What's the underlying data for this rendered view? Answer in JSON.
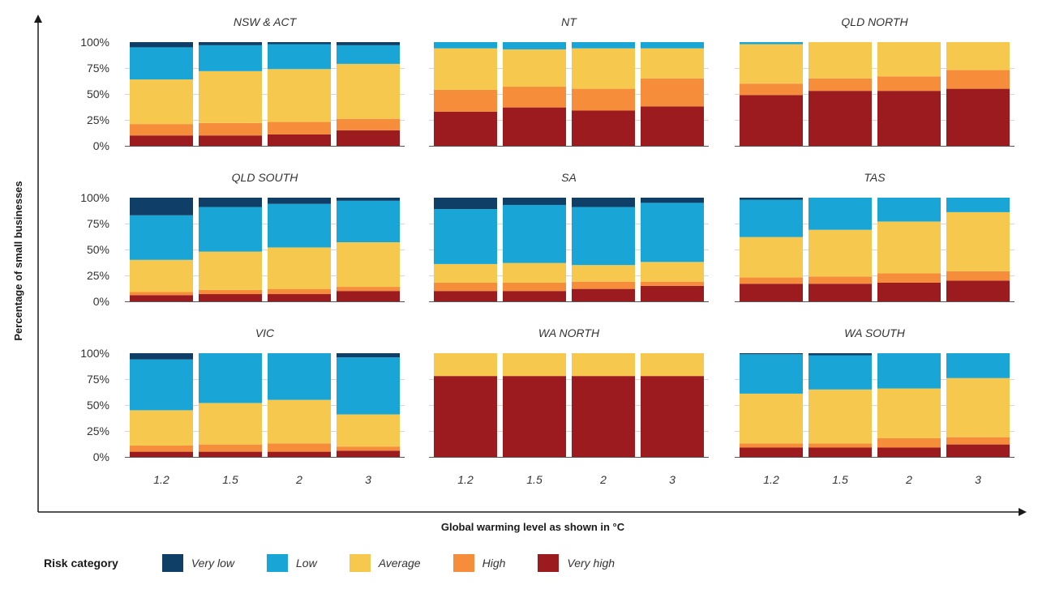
{
  "chart_data": {
    "type": "stacked-bar",
    "x_title": "Global warming level as shown in °C",
    "y_title": "Percentage of small businesses",
    "categories": [
      "1.2",
      "1.5",
      "2",
      "3"
    ],
    "y_ticks": [
      "100%",
      "75%",
      "50%",
      "25%",
      "0%"
    ],
    "ylim": [
      0,
      100
    ],
    "legend_title": "Risk category",
    "series": [
      {
        "name": "Very high",
        "color": "#9b1b1f"
      },
      {
        "name": "High",
        "color": "#f58d3b"
      },
      {
        "name": "Average",
        "color": "#f6c94e"
      },
      {
        "name": "Low",
        "color": "#19a6d6"
      },
      {
        "name": "Very low",
        "color": "#0f3f66"
      }
    ],
    "legend_order": [
      "Very low",
      "Low",
      "Average",
      "High",
      "Very high"
    ],
    "panels": [
      {
        "title": "NSW & ACT",
        "stacks": [
          [
            10,
            11,
            43,
            31,
            5
          ],
          [
            10,
            12,
            50,
            25,
            3
          ],
          [
            11,
            12,
            51,
            24,
            2
          ],
          [
            15,
            11,
            53,
            18,
            3
          ]
        ]
      },
      {
        "title": "NT",
        "stacks": [
          [
            33,
            21,
            40,
            6,
            0
          ],
          [
            37,
            20,
            36,
            7,
            0
          ],
          [
            34,
            21,
            39,
            6,
            0
          ],
          [
            38,
            27,
            29,
            6,
            0
          ]
        ]
      },
      {
        "title": "QLD NORTH",
        "stacks": [
          [
            49,
            11,
            38,
            2,
            0
          ],
          [
            53,
            12,
            35,
            0,
            0
          ],
          [
            53,
            14,
            33,
            0,
            0
          ],
          [
            55,
            18,
            27,
            0,
            0
          ]
        ]
      },
      {
        "title": "QLD SOUTH",
        "stacks": [
          [
            6,
            3,
            31,
            43,
            17
          ],
          [
            7,
            4,
            37,
            43,
            9
          ],
          [
            7,
            5,
            40,
            42,
            6
          ],
          [
            10,
            4,
            43,
            40,
            3
          ]
        ]
      },
      {
        "title": "SA",
        "stacks": [
          [
            10,
            8,
            18,
            53,
            11
          ],
          [
            10,
            8,
            19,
            56,
            7
          ],
          [
            12,
            7,
            16,
            56,
            9
          ],
          [
            15,
            4,
            19,
            57,
            5
          ]
        ]
      },
      {
        "title": "TAS",
        "stacks": [
          [
            17,
            6,
            39,
            36,
            2
          ],
          [
            17,
            7,
            45,
            31,
            0
          ],
          [
            18,
            9,
            50,
            23,
            0
          ],
          [
            20,
            9,
            57,
            14,
            0
          ]
        ]
      },
      {
        "title": "VIC",
        "stacks": [
          [
            5,
            6,
            34,
            49,
            6
          ],
          [
            5,
            7,
            40,
            48,
            0
          ],
          [
            5,
            8,
            42,
            45,
            0
          ],
          [
            6,
            4,
            31,
            55,
            4
          ]
        ]
      },
      {
        "title": "WA NORTH",
        "stacks": [
          [
            78,
            0,
            22,
            0,
            0
          ],
          [
            78,
            0,
            22,
            0,
            0
          ],
          [
            78,
            0,
            22,
            0,
            0
          ],
          [
            78,
            0,
            22,
            0,
            0
          ]
        ]
      },
      {
        "title": "WA SOUTH",
        "stacks": [
          [
            9,
            4,
            48,
            38,
            1
          ],
          [
            9,
            4,
            52,
            33,
            2
          ],
          [
            9,
            9,
            48,
            34,
            0
          ],
          [
            12,
            7,
            57,
            24,
            0
          ]
        ]
      }
    ]
  }
}
